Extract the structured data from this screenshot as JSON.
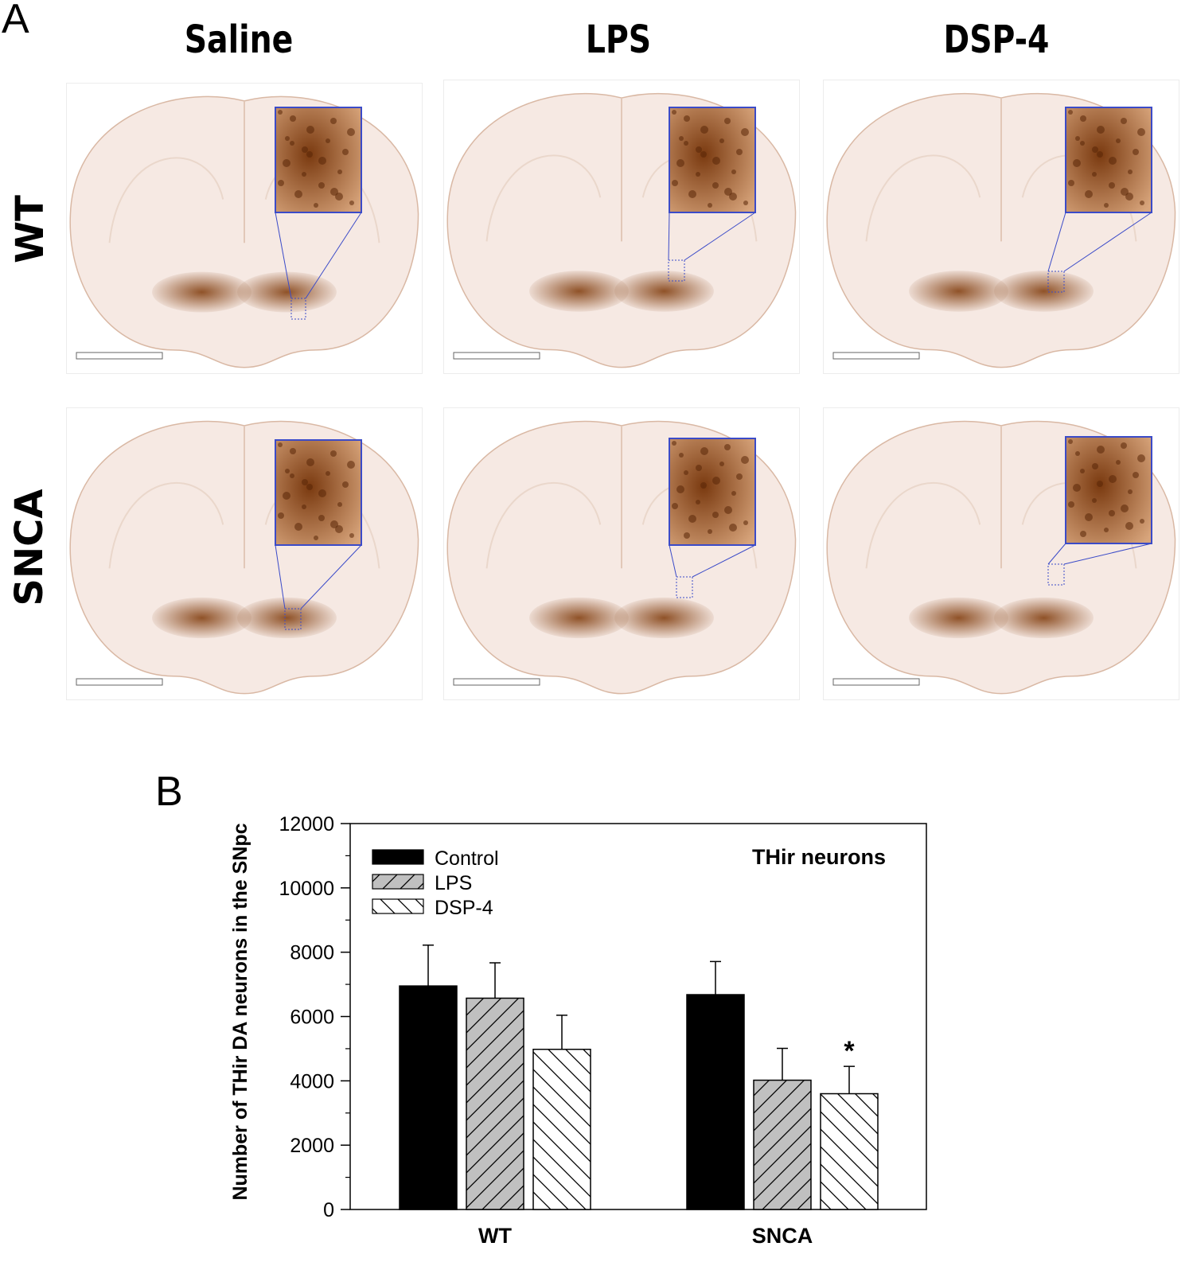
{
  "panel_a": {
    "letter": "A",
    "columns": [
      "Saline",
      "LPS",
      "DSP-4"
    ],
    "rows": [
      "WT",
      "SNCA"
    ],
    "colors": {
      "stain_dark": "#8a4a1e",
      "stain_light": "#f6e9e3",
      "inset_border": "#3b4bc8"
    }
  },
  "panel_b": {
    "letter": "B"
  },
  "chart_data": {
    "type": "bar",
    "categories": [
      "WT",
      "SNCA"
    ],
    "series": [
      {
        "name": "Control",
        "values": [
          6950,
          6680
        ],
        "errors": [
          1270,
          1030
        ],
        "fill": "#000000",
        "pattern": "solid"
      },
      {
        "name": "LPS",
        "values": [
          6570,
          4020
        ],
        "errors": [
          1100,
          990
        ],
        "fill": "#c0c0c0",
        "pattern": "forward-hatch"
      },
      {
        "name": "DSP-4",
        "values": [
          4980,
          3600
        ],
        "errors": [
          1060,
          850
        ],
        "fill": "#ffffff",
        "pattern": "back-hatch"
      }
    ],
    "annotation": {
      "text": "THir neurons"
    },
    "significance": [
      {
        "category": "SNCA",
        "series": "DSP-4",
        "mark": "*"
      }
    ],
    "ylabel": "Number of THir DA neurons in the SNpc",
    "ylim": [
      0,
      12000
    ],
    "yticks": [
      "0",
      "2000",
      "4000",
      "6000",
      "8000",
      "10000",
      "12000"
    ],
    "legend": "top-left",
    "grid": false
  }
}
